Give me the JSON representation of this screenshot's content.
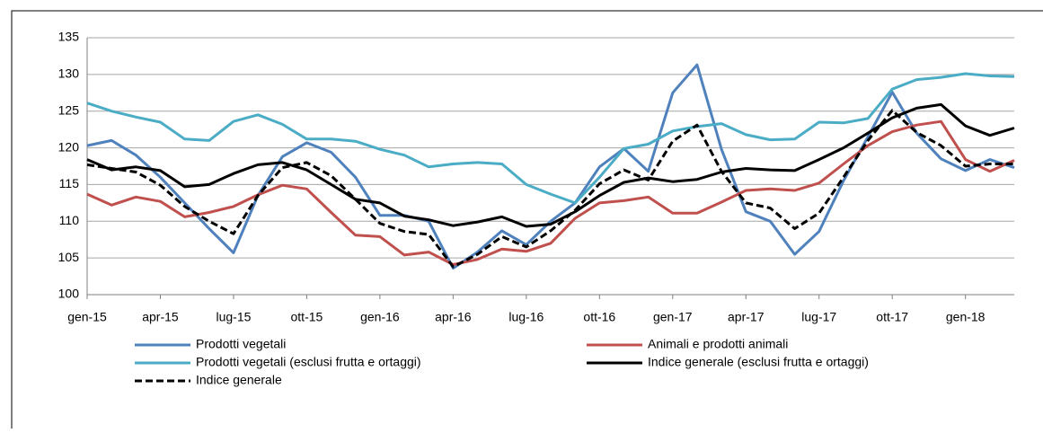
{
  "chart_data": {
    "type": "line",
    "categories": [
      "gen-15",
      null,
      null,
      "apr-15",
      null,
      null,
      "lug-15",
      null,
      null,
      "ott-15",
      null,
      null,
      "gen-16",
      null,
      null,
      "apr-16",
      null,
      null,
      "lug-16",
      null,
      null,
      "ott-16",
      null,
      null,
      "gen-17",
      null,
      null,
      "apr-17",
      null,
      null,
      "lug-17",
      null,
      null,
      "ott-17",
      null,
      null,
      "gen-18",
      null,
      null
    ],
    "ylim": [
      100,
      135
    ],
    "yticks": [
      100,
      105,
      110,
      115,
      120,
      125,
      130,
      135
    ],
    "grid": true,
    "series": [
      {
        "name": "Prodotti vegetali",
        "color": "#4f81bd",
        "dashed": false,
        "values": [
          120.3,
          121,
          119,
          116,
          112.5,
          109,
          105.7,
          113.5,
          118.8,
          120.7,
          119.4,
          116,
          110.8,
          110.8,
          110,
          103.6,
          105.8,
          108.7,
          106.8,
          110,
          112.5,
          117.4,
          119.9,
          116.8,
          127.5,
          131.3,
          119.8,
          111.3,
          110,
          105.5,
          108.6,
          115.5,
          121.5,
          127.6,
          122,
          118.5,
          116.9,
          118.4,
          117.3
        ]
      },
      {
        "name": "Animali e prodotti animali",
        "color": "#c0504d",
        "dashed": false,
        "values": [
          113.7,
          112.2,
          113.3,
          112.7,
          110.6,
          111.2,
          112,
          113.6,
          114.9,
          114.4,
          111.2,
          108.1,
          107.9,
          105.4,
          105.8,
          104.1,
          104.8,
          106.2,
          105.9,
          107,
          110.4,
          112.5,
          112.8,
          113.3,
          111.1,
          111.1,
          112.6,
          114.2,
          114.4,
          114.2,
          115.2,
          117.8,
          120.3,
          122.2,
          123.1,
          123.6,
          118.4,
          116.8,
          118.3
        ]
      },
      {
        "name": "Prodotti vegetali (esclusi frutta e ortaggi)",
        "color": "#4bacc6",
        "dashed": false,
        "values": [
          126.1,
          125,
          124.2,
          123.5,
          121.2,
          121,
          123.6,
          124.5,
          123.2,
          121.2,
          121.2,
          120.9,
          119.8,
          119,
          117.4,
          117.8,
          118,
          117.8,
          115,
          113.7,
          112.5,
          116,
          119.9,
          120.5,
          122.3,
          122.9,
          123.3,
          121.8,
          121.1,
          121.2,
          123.5,
          123.4,
          124,
          128,
          129.3,
          129.6,
          130.1,
          129.8,
          129.7
        ]
      },
      {
        "name": "Indice generale (esclusi frutta e ortaggi)",
        "color": "#000000",
        "dashed": false,
        "values": [
          118.4,
          117,
          117.4,
          116.9,
          114.7,
          115,
          116.5,
          117.7,
          118,
          117,
          115,
          113,
          112.5,
          110.7,
          110.2,
          109.4,
          109.9,
          110.6,
          109.3,
          109.6,
          111.3,
          113.5,
          115.3,
          115.9,
          115.4,
          115.7,
          116.7,
          117.2,
          117,
          116.9,
          118.4,
          120,
          122,
          124.1,
          125.4,
          125.9,
          123,
          121.7,
          122.7
        ]
      },
      {
        "name": "Indice generale",
        "color": "#000000",
        "dashed": true,
        "values": [
          117.7,
          117.2,
          116.7,
          114.9,
          112,
          110,
          108.3,
          113.5,
          117.3,
          118,
          116.2,
          113,
          109.7,
          108.6,
          108.2,
          103.8,
          105.5,
          107.9,
          106.5,
          108.7,
          111.5,
          115.1,
          117,
          115.6,
          120.9,
          123.1,
          116.8,
          112.5,
          111.8,
          109,
          111.1,
          116,
          121,
          125.1,
          122.1,
          120.3,
          117.5,
          117.8,
          117.8
        ]
      }
    ]
  }
}
